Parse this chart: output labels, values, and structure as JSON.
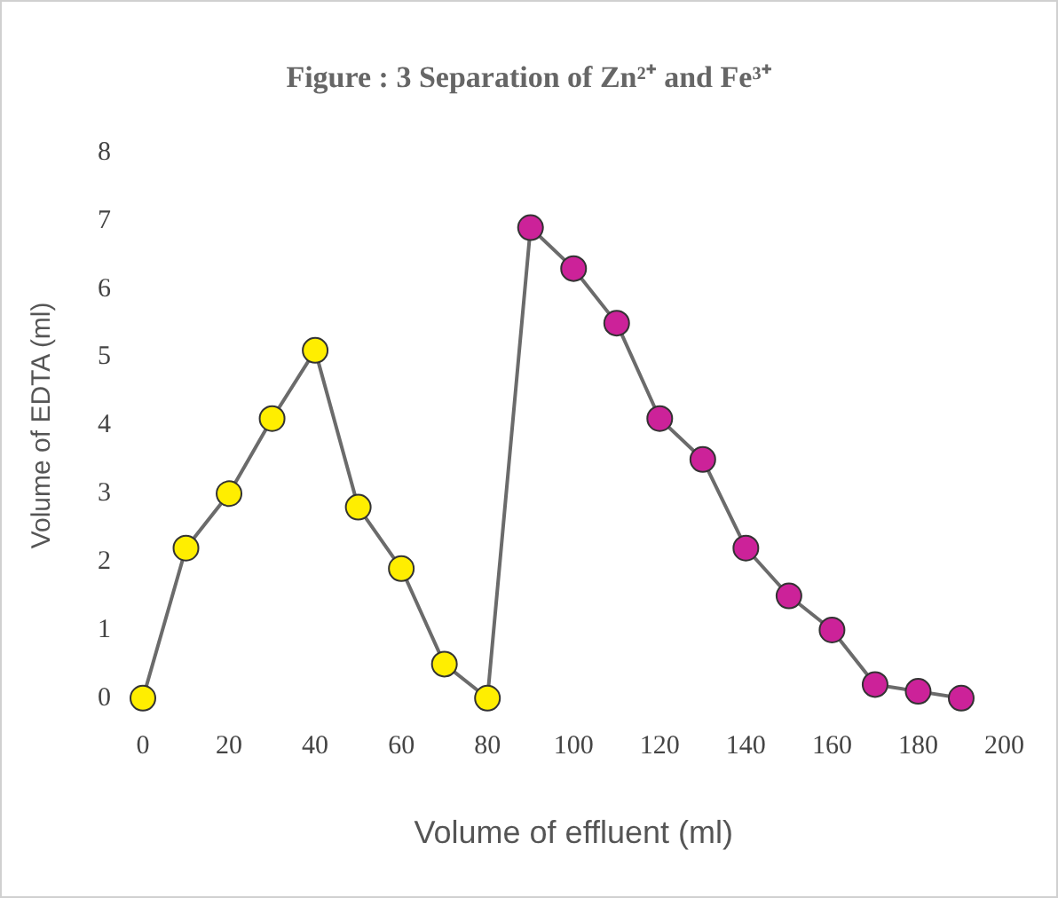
{
  "chart_data": {
    "type": "line",
    "title": "Figure : 3 Separation of Zn²⁺ and Fe³⁺",
    "xlabel": "Volume of effluent (ml)",
    "ylabel": "Volume of EDTA (ml)",
    "x": [
      0,
      10,
      20,
      30,
      40,
      50,
      60,
      70,
      80,
      90,
      100,
      110,
      120,
      130,
      140,
      150,
      160,
      170,
      180,
      190
    ],
    "series": [
      {
        "color": "#6b6b6b",
        "colors": [
          "#ffee00",
          "#ffee00",
          "#ffee00",
          "#ffee00",
          "#ffee00",
          "#ffee00",
          "#ffee00",
          "#ffee00",
          "#ffee00",
          "#cc2299",
          "#cc2299",
          "#cc2299",
          "#cc2299",
          "#cc2299",
          "#cc2299",
          "#cc2299",
          "#cc2299",
          "#cc2299",
          "#cc2299",
          "#cc2299"
        ],
        "values": [
          0,
          2.2,
          3.0,
          4.1,
          5.1,
          2.8,
          1.9,
          0.5,
          0,
          6.9,
          6.3,
          5.5,
          4.1,
          3.5,
          2.2,
          1.5,
          1.0,
          0.2,
          0.1,
          0.0
        ]
      }
    ],
    "xlim": [
      0,
      200
    ],
    "xticks": [
      0,
      20,
      40,
      60,
      80,
      100,
      120,
      140,
      160,
      180,
      200
    ],
    "ylim": [
      0,
      8
    ],
    "yticks": [
      0,
      1,
      2,
      3,
      4,
      5,
      6,
      7,
      8
    ],
    "grid": false,
    "legend": false,
    "marker": "circle",
    "line_style": "solid"
  }
}
